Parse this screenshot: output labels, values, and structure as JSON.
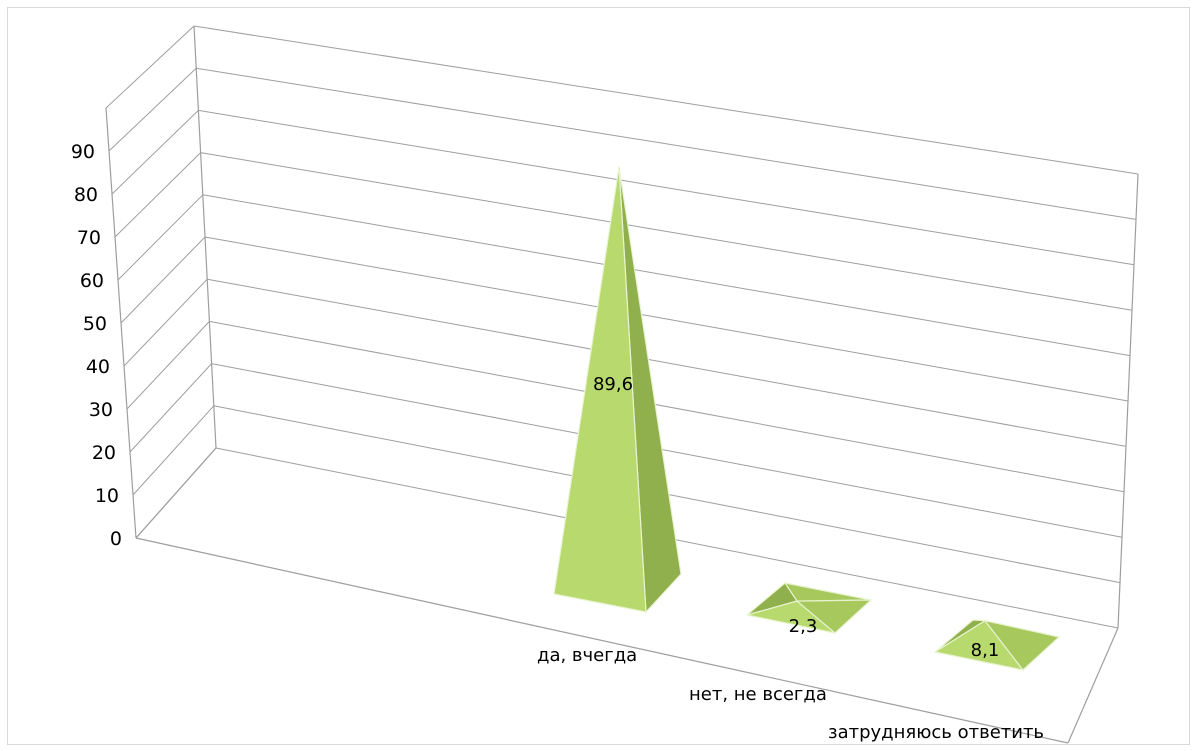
{
  "chart_data": {
    "type": "bar",
    "subtype": "3d-pyramid",
    "title": "",
    "xlabel": "",
    "ylabel": "",
    "categories": [
      "да, вчегда",
      "нет, не всегда",
      "затрудняюсь ответить"
    ],
    "values": [
      89.6,
      2.3,
      8.1
    ],
    "data_labels": [
      "89,6",
      "2,3",
      "8,1"
    ],
    "y_ticks": [
      "0",
      "10",
      "20",
      "30",
      "40",
      "50",
      "60",
      "70",
      "80",
      "90"
    ],
    "ylim": [
      0,
      90
    ],
    "grid": true,
    "legend": "none",
    "colors": {
      "face_light": "#b8d96e",
      "face_dark": "#8fb04c",
      "face_mid": "#a6c85c",
      "grid": "#9e9e9e"
    }
  }
}
